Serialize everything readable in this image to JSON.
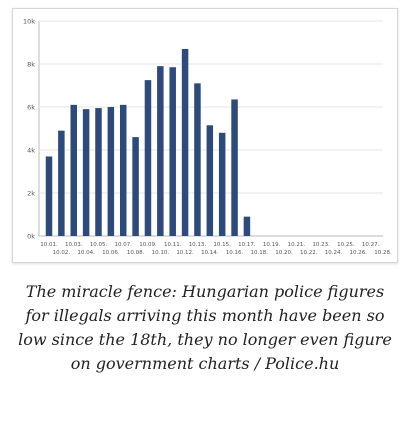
{
  "chart_data": {
    "type": "bar",
    "categories": [
      "10.01.",
      "10.02.",
      "10.03.",
      "10.04.",
      "10.05.",
      "10.06.",
      "10.07.",
      "10.08.",
      "10.09.",
      "10.10.",
      "10.11.",
      "10.12.",
      "10.13.",
      "10.14.",
      "10.15.",
      "10.16.",
      "10.17.",
      "10.18.",
      "10.19.",
      "10.20.",
      "10.21.",
      "10.22.",
      "10.23.",
      "10.24.",
      "10.25.",
      "10.26.",
      "10.27.",
      "10.28."
    ],
    "values": [
      3700,
      4900,
      6100,
      5900,
      5950,
      6000,
      6100,
      4600,
      7250,
      7900,
      7850,
      8700,
      7100,
      5150,
      4800,
      6350,
      900,
      null,
      null,
      null,
      null,
      null,
      null,
      null,
      null,
      null,
      null,
      null
    ],
    "yticks": [
      "0k",
      "2k",
      "4k",
      "6k",
      "8k",
      "10k"
    ],
    "ylim": [
      0,
      10000
    ],
    "grid": true,
    "bar_color": "#2e4a7a",
    "grid_color": "#e6e6e6",
    "title": "",
    "xlabel": "",
    "ylabel": ""
  },
  "caption": "The miracle fence: Hungarian police figures for illegals arriving this month have been so low since the 18th, they no longer even figure on government charts / Police.hu"
}
